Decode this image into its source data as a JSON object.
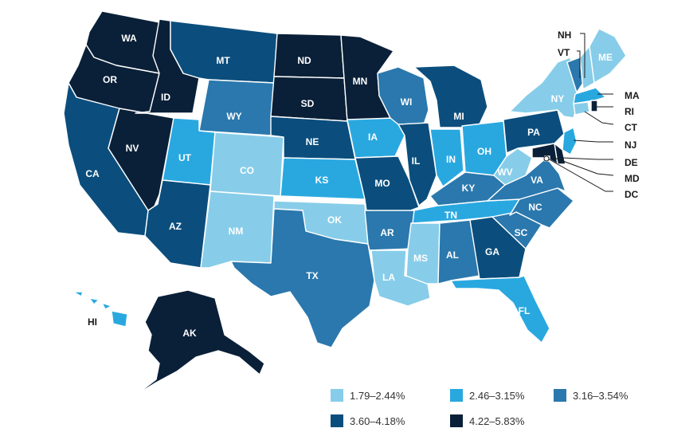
{
  "colors": {
    "c1": "#87cde9",
    "c2": "#29a8e0",
    "c3": "#2a78ad",
    "c4": "#0b4e7d",
    "c5": "#0a2038",
    "border": "#ffffff",
    "text": "#333333"
  },
  "legend": [
    {
      "label": "1.79–2.44%",
      "bin": "c1"
    },
    {
      "label": "2.46–3.15%",
      "bin": "c2"
    },
    {
      "label": "3.16–3.54%",
      "bin": "c3"
    },
    {
      "label": "3.60–4.18%",
      "bin": "c4"
    },
    {
      "label": "4.22–5.83%",
      "bin": "c5"
    }
  ],
  "states": {
    "WA": "c5",
    "OR": "c5",
    "ID": "c5",
    "MT": "c4",
    "WY": "c3",
    "ND": "c5",
    "SD": "c5",
    "MN": "c5",
    "WI": "c3",
    "MI": "c4",
    "CA": "c4",
    "NV": "c5",
    "UT": "c2",
    "CO": "c1",
    "NE": "c4",
    "IA": "c2",
    "IL": "c4",
    "IN": "c2",
    "OH": "c2",
    "KS": "c2",
    "MO": "c4",
    "KY": "c3",
    "WV": "c1",
    "VA": "c3",
    "AZ": "c4",
    "NM": "c1",
    "OK": "c1",
    "AR": "c3",
    "TN": "c2",
    "NC": "c3",
    "SC": "c3",
    "TX": "c3",
    "LA": "c1",
    "MS": "c1",
    "AL": "c3",
    "GA": "c4",
    "FL": "c2",
    "PA": "c4",
    "NY": "c1",
    "ME": "c1",
    "NH": "c1",
    "VT": "c3",
    "MA": "c2",
    "RI": "c5",
    "CT": "c1",
    "NJ": "c2",
    "DE": "c5",
    "MD": "c5",
    "DC": "c5",
    "AK": "c5",
    "HI": "c2"
  },
  "labels": {
    "WA": "WA",
    "OR": "OR",
    "ID": "ID",
    "MT": "MT",
    "WY": "WY",
    "ND": "ND",
    "SD": "SD",
    "MN": "MN",
    "WI": "WI",
    "MI": "MI",
    "CA": "CA",
    "NV": "NV",
    "UT": "UT",
    "CO": "CO",
    "NE": "NE",
    "IA": "IA",
    "IL": "IL",
    "IN": "IN",
    "OH": "OH",
    "KS": "KS",
    "MO": "MO",
    "KY": "KY",
    "WV": "WV",
    "VA": "VA",
    "AZ": "AZ",
    "NM": "NM",
    "OK": "OK",
    "AR": "AR",
    "TN": "TN",
    "NC": "NC",
    "SC": "SC",
    "TX": "TX",
    "LA": "LA",
    "MS": "MS",
    "AL": "AL",
    "GA": "GA",
    "FL": "FL",
    "PA": "PA",
    "NY": "NY",
    "ME": "ME",
    "AK": "AK",
    "NH": "NH",
    "VT": "VT",
    "MA": "MA",
    "RI": "RI",
    "CT": "CT",
    "NJ": "NJ",
    "DE": "DE",
    "MD": "MD",
    "DC": "DC",
    "HI": "HI"
  }
}
